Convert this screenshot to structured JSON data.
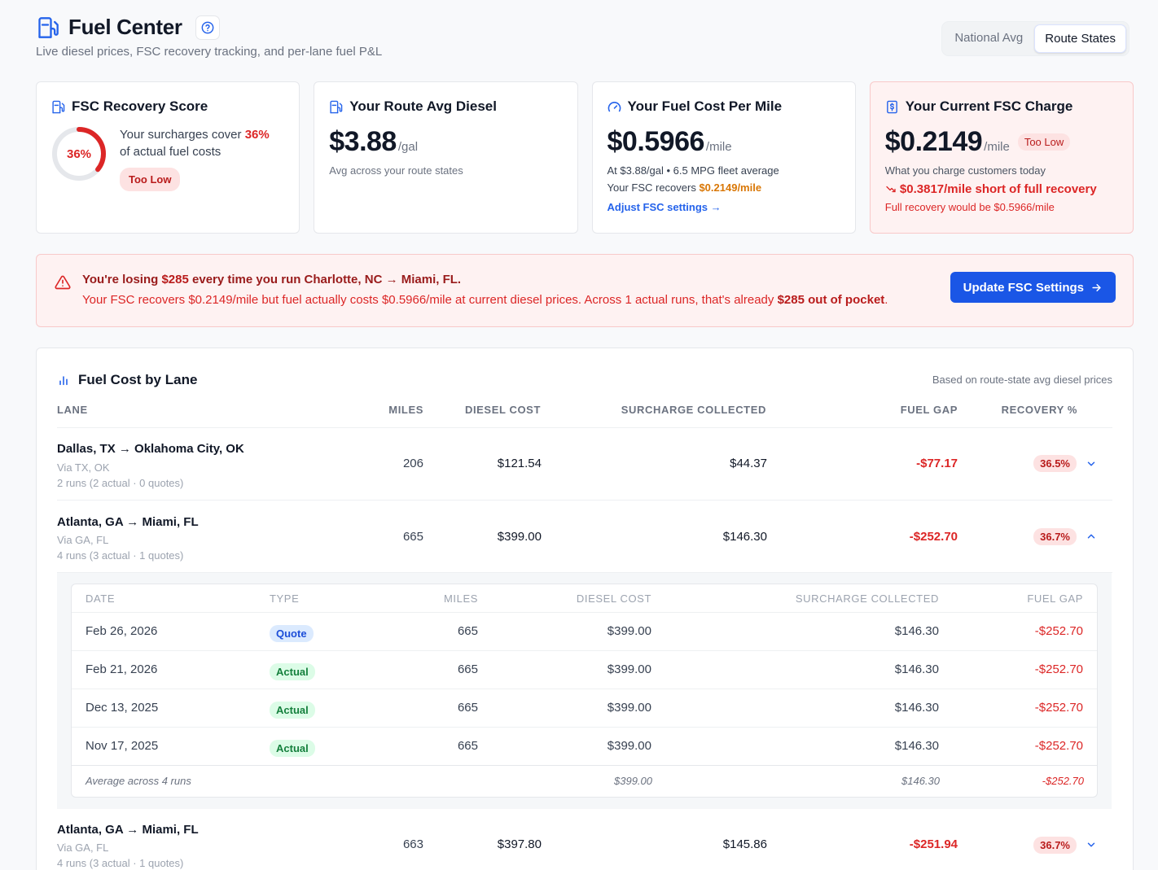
{
  "header": {
    "title": "Fuel Center",
    "subtitle": "Live diesel prices, FSC recovery tracking, and per-lane fuel P&L",
    "toggle": [
      "National Avg",
      "Route States"
    ],
    "toggle_active": "Route States"
  },
  "cards": {
    "recovery": {
      "title": "FSC Recovery Score",
      "ring_label": "36%",
      "ring_fraction": 0.36,
      "text_before": "Your surcharges cover ",
      "text_pct": "36%",
      "text_after": "of actual fuel costs",
      "badge": "Too Low"
    },
    "route_avg": {
      "title": "Your Route Avg Diesel",
      "value": "$3.88",
      "unit": "/gal",
      "note": "Avg across your route states"
    },
    "cost_per_mile": {
      "title": "Your Fuel Cost Per Mile",
      "value": "$0.5966",
      "unit": "/mile",
      "line1": "At $3.88/gal • 6.5 MPG fleet average",
      "line2_prefix": "Your FSC recovers ",
      "line2_value": "$0.2149/mile",
      "link": "Adjust FSC settings →"
    },
    "current_fsc": {
      "title": "Your Current FSC Charge",
      "value": "$0.2149",
      "unit": "/mile",
      "badge": "Too Low",
      "note": "What you charge customers today",
      "shortfall": "$0.3817/mile short of full recovery",
      "full": "Full recovery would be $0.5966/mile"
    }
  },
  "alert": {
    "l1_a": "You're losing ",
    "l1_amount": "$285",
    "l1_b": " every time you run Charlotte, NC → Miami, FL.",
    "l2_a": "Your FSC recovers $0.2149/mile but fuel actually costs $0.5966/mile at current diesel prices. Across 1 actual runs, that's already ",
    "l2_bold": "$285 out of pocket",
    "l2_end": ".",
    "button": "Update FSC Settings"
  },
  "lanes_panel": {
    "title": "Fuel Cost by Lane",
    "note": "Based on route-state avg diesel prices",
    "columns": [
      "LANE",
      "MILES",
      "DIESEL COST",
      "SURCHARGE COLLECTED",
      "FUEL GAP",
      "RECOVERY %"
    ],
    "rows": [
      {
        "lane": "Dallas, TX → Oklahoma City, OK",
        "via": "Via TX, OK",
        "runs": "2 runs (2 actual · 0 quotes)",
        "miles": "206",
        "diesel": "$121.54",
        "surcharge": "$44.37",
        "gap": "-$77.17",
        "recovery": "36.5%"
      },
      {
        "lane": "Atlanta, GA → Miami, FL",
        "via": "Via GA, FL",
        "runs": "4 runs (3 actual · 1 quotes)",
        "miles": "665",
        "diesel": "$399.00",
        "surcharge": "$146.30",
        "gap": "-$252.70",
        "recovery": "36.7%"
      },
      {
        "lane": "Atlanta, GA → Miami, FL",
        "via": "Via GA, FL",
        "runs": "4 runs (3 actual · 1 quotes)",
        "miles": "663",
        "diesel": "$397.80",
        "surcharge": "$145.86",
        "gap": "-$251.94",
        "recovery": "36.7%"
      }
    ],
    "detail": {
      "columns": [
        "DATE",
        "TYPE",
        "MILES",
        "DIESEL COST",
        "SURCHARGE COLLECTED",
        "FUEL GAP"
      ],
      "runs": [
        {
          "date": "Feb 26, 2026",
          "type": "Quote",
          "miles": "665",
          "diesel": "$399.00",
          "surcharge": "$146.30",
          "gap": "-$252.70"
        },
        {
          "date": "Feb 21, 2026",
          "type": "Actual",
          "miles": "665",
          "diesel": "$399.00",
          "surcharge": "$146.30",
          "gap": "-$252.70"
        },
        {
          "date": "Dec 13, 2025",
          "type": "Actual",
          "miles": "665",
          "diesel": "$399.00",
          "surcharge": "$146.30",
          "gap": "-$252.70"
        },
        {
          "date": "Nov 17, 2025",
          "type": "Actual",
          "miles": "665",
          "diesel": "$399.00",
          "surcharge": "$146.30",
          "gap": "-$252.70"
        }
      ],
      "avg_label": "Average across 4 runs",
      "avg_diesel": "$399.00",
      "avg_surcharge": "$146.30",
      "avg_gap": "-$252.70"
    }
  },
  "colors": {
    "accent": "#1a56e6",
    "danger": "#dc2626",
    "warn": "#d97706"
  }
}
